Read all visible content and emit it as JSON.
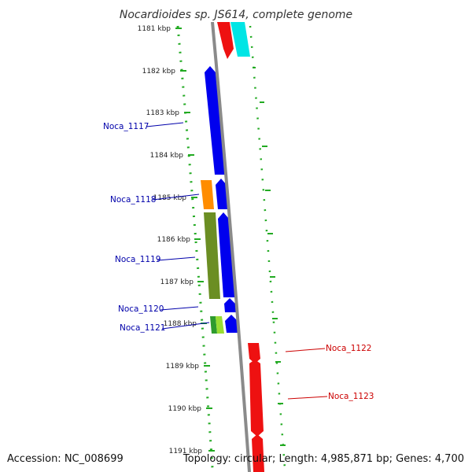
{
  "title": "Nocardioides sp. JS614, complete genome",
  "footer": {
    "accession": "Accession: NC_008699",
    "summary": "Topology: circular; Length: 4,985,871 bp; Genes: 4,700"
  },
  "ticks": [
    {
      "label": "1181 kbp"
    },
    {
      "label": "1182 kbp"
    },
    {
      "label": "1183 kbp"
    },
    {
      "label": "1184 kbp"
    },
    {
      "label": "1185 kbp"
    },
    {
      "label": "1186 kbp"
    },
    {
      "label": "1187 kbp"
    },
    {
      "label": "1188 kbp"
    },
    {
      "label": "1189 kbp"
    },
    {
      "label": "1190 kbp"
    },
    {
      "label": "1191 kbp"
    }
  ],
  "gene_labels": [
    {
      "text": "Noca_1117",
      "color": "#0000aa"
    },
    {
      "text": "Noca_1118",
      "color": "#0000aa"
    },
    {
      "text": "Noca_1119",
      "color": "#0000aa"
    },
    {
      "text": "Noca_1120",
      "color": "#0000aa"
    },
    {
      "text": "Noca_1121",
      "color": "#0000aa"
    },
    {
      "text": "Noca_1122",
      "color": "#cc0000"
    },
    {
      "text": "Noca_1123",
      "color": "#cc0000"
    }
  ],
  "colors": {
    "backbone": "#8a8a8a",
    "tick_dots": "#22aa22",
    "reverse_cds": "#0000ee",
    "forward_cds": "#ee1111",
    "upstream_feature": "#00e5e5",
    "orange_feature": "#ff8c00",
    "olive_feature": "#6b8e23",
    "light_green_feature": "#99dd33"
  }
}
